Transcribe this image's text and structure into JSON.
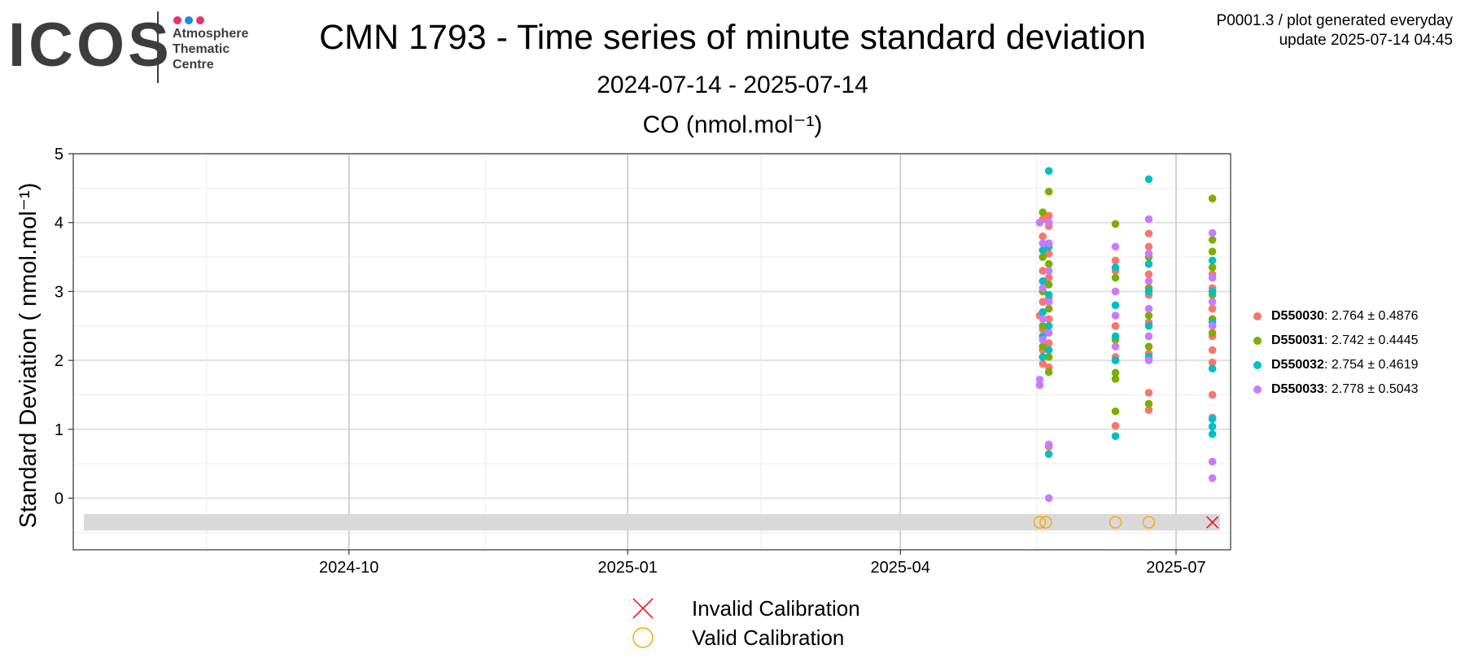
{
  "logo": {
    "name": "ICOS",
    "sub": [
      "Atmosphere",
      "Thematic",
      "Centre"
    ],
    "dot_colors": [
      "#e8316f",
      "#1e88e5",
      "#e8316f"
    ]
  },
  "header": {
    "title": "CMN 1793 - Time series of minute standard deviation",
    "subtitle": "2024-07-14 - 2025-07-14",
    "info_line1": "P0001.3 / plot generated everyday",
    "info_line2": "update  2025-07-14 04:45"
  },
  "chart_data": {
    "type": "scatter",
    "title": "CO (nmol.mol⁻¹)",
    "ylabel": "Standard Deviation ( nmol.mol⁻¹)",
    "xlabel": "",
    "xlim": [
      "2024-07-14",
      "2025-07-14"
    ],
    "ylim": [
      -0.75,
      5
    ],
    "x_ticks": [
      "2024-10",
      "2025-01",
      "2025-04",
      "2025-07"
    ],
    "y_ticks": [
      0,
      1,
      2,
      3,
      4,
      5
    ],
    "grid": true,
    "legend_position": "right",
    "series": [
      {
        "name": "D550030",
        "stats": ": 2.764 ± 0.4876",
        "color": "#F8766D",
        "points": [
          [
            "2025-05-17",
            2.65
          ],
          [
            "2025-05-18",
            2.7
          ],
          [
            "2025-05-18",
            4.05
          ],
          [
            "2025-05-18",
            3.8
          ],
          [
            "2025-05-18",
            3.3
          ],
          [
            "2025-05-18",
            2.85
          ],
          [
            "2025-05-18",
            2.45
          ],
          [
            "2025-05-18",
            2.15
          ],
          [
            "2025-05-18",
            1.95
          ],
          [
            "2025-05-20",
            4.1
          ],
          [
            "2025-05-20",
            3.95
          ],
          [
            "2025-05-20",
            3.55
          ],
          [
            "2025-05-20",
            3.2
          ],
          [
            "2025-05-20",
            2.9
          ],
          [
            "2025-05-20",
            2.6
          ],
          [
            "2025-05-20",
            2.25
          ],
          [
            "2025-05-20",
            0.75
          ],
          [
            "2025-05-20",
            1.9
          ],
          [
            "2025-06-11",
            1.05
          ],
          [
            "2025-06-11",
            2.05
          ],
          [
            "2025-06-11",
            2.5
          ],
          [
            "2025-06-11",
            3.0
          ],
          [
            "2025-06-11",
            3.3
          ],
          [
            "2025-06-11",
            3.45
          ],
          [
            "2025-06-22",
            1.28
          ],
          [
            "2025-06-22",
            1.53
          ],
          [
            "2025-06-22",
            2.1
          ],
          [
            "2025-06-22",
            2.55
          ],
          [
            "2025-06-22",
            2.95
          ],
          [
            "2025-06-22",
            3.25
          ],
          [
            "2025-06-22",
            3.65
          ],
          [
            "2025-06-22",
            3.84
          ],
          [
            "2025-07-13",
            1.5
          ],
          [
            "2025-07-13",
            1.17
          ],
          [
            "2025-07-13",
            1.97
          ],
          [
            "2025-07-13",
            2.15
          ],
          [
            "2025-07-13",
            2.35
          ],
          [
            "2025-07-13",
            2.75
          ],
          [
            "2025-07-13",
            3.05
          ],
          [
            "2025-07-13",
            3.25
          ]
        ]
      },
      {
        "name": "D550031",
        "stats": ": 2.742 ± 0.4445",
        "color": "#7CAE00",
        "points": [
          [
            "2025-05-18",
            4.15
          ],
          [
            "2025-05-18",
            3.5
          ],
          [
            "2025-05-18",
            3.0
          ],
          [
            "2025-05-18",
            2.5
          ],
          [
            "2025-05-18",
            2.2
          ],
          [
            "2025-05-20",
            4.45
          ],
          [
            "2025-05-20",
            3.4
          ],
          [
            "2025-05-20",
            3.1
          ],
          [
            "2025-05-20",
            2.75
          ],
          [
            "2025-05-20",
            2.05
          ],
          [
            "2025-05-20",
            1.83
          ],
          [
            "2025-06-11",
            3.98
          ],
          [
            "2025-06-11",
            3.2
          ],
          [
            "2025-06-11",
            2.3
          ],
          [
            "2025-06-11",
            1.82
          ],
          [
            "2025-06-11",
            1.73
          ],
          [
            "2025-06-11",
            1.26
          ],
          [
            "2025-06-22",
            3.5
          ],
          [
            "2025-06-22",
            3.05
          ],
          [
            "2025-06-22",
            2.65
          ],
          [
            "2025-06-22",
            2.2
          ],
          [
            "2025-06-22",
            1.37
          ],
          [
            "2025-07-13",
            4.35
          ],
          [
            "2025-07-13",
            3.75
          ],
          [
            "2025-07-13",
            3.58
          ],
          [
            "2025-07-13",
            3.35
          ],
          [
            "2025-07-13",
            2.95
          ],
          [
            "2025-07-13",
            2.6
          ],
          [
            "2025-07-13",
            2.4
          ]
        ]
      },
      {
        "name": "D550032",
        "stats": ": 2.754 ± 0.4619",
        "color": "#00BFC4",
        "points": [
          [
            "2025-05-18",
            3.6
          ],
          [
            "2025-05-18",
            3.15
          ],
          [
            "2025-05-18",
            2.7
          ],
          [
            "2025-05-18",
            2.35
          ],
          [
            "2025-05-18",
            2.05
          ],
          [
            "2025-05-20",
            4.75
          ],
          [
            "2025-05-20",
            3.65
          ],
          [
            "2025-05-20",
            2.95
          ],
          [
            "2025-05-20",
            2.5
          ],
          [
            "2025-05-20",
            2.15
          ],
          [
            "2025-05-20",
            0.64
          ],
          [
            "2025-06-11",
            3.35
          ],
          [
            "2025-06-11",
            2.8
          ],
          [
            "2025-06-11",
            2.35
          ],
          [
            "2025-06-11",
            2.0
          ],
          [
            "2025-06-11",
            0.9
          ],
          [
            "2025-06-22",
            4.63
          ],
          [
            "2025-06-22",
            3.4
          ],
          [
            "2025-06-22",
            3.0
          ],
          [
            "2025-06-22",
            2.5
          ],
          [
            "2025-06-22",
            2.05
          ],
          [
            "2025-07-13",
            3.45
          ],
          [
            "2025-07-13",
            3.0
          ],
          [
            "2025-07-13",
            2.55
          ],
          [
            "2025-07-13",
            1.88
          ],
          [
            "2025-07-13",
            1.15
          ],
          [
            "2025-07-13",
            1.04
          ],
          [
            "2025-07-13",
            0.93
          ]
        ]
      },
      {
        "name": "D550033",
        "stats": ": 2.778 ± 0.5043",
        "color": "#C77CFF",
        "points": [
          [
            "2025-05-17",
            4.0
          ],
          [
            "2025-05-17",
            1.72
          ],
          [
            "2025-05-17",
            1.64
          ],
          [
            "2025-05-18",
            3.7
          ],
          [
            "2025-05-18",
            3.05
          ],
          [
            "2025-05-18",
            2.6
          ],
          [
            "2025-05-18",
            2.3
          ],
          [
            "2025-05-20",
            4.0
          ],
          [
            "2025-05-20",
            3.7
          ],
          [
            "2025-05-20",
            3.3
          ],
          [
            "2025-05-20",
            2.85
          ],
          [
            "2025-05-20",
            2.4
          ],
          [
            "2025-05-20",
            0.78
          ],
          [
            "2025-05-20",
            0.0
          ],
          [
            "2025-06-11",
            3.65
          ],
          [
            "2025-06-11",
            3.0
          ],
          [
            "2025-06-11",
            2.65
          ],
          [
            "2025-06-11",
            2.2
          ],
          [
            "2025-06-22",
            4.05
          ],
          [
            "2025-06-22",
            3.55
          ],
          [
            "2025-06-22",
            3.15
          ],
          [
            "2025-06-22",
            2.75
          ],
          [
            "2025-06-22",
            2.35
          ],
          [
            "2025-06-22",
            2.0
          ],
          [
            "2025-07-13",
            3.85
          ],
          [
            "2025-07-13",
            3.2
          ],
          [
            "2025-07-13",
            2.85
          ],
          [
            "2025-07-13",
            2.5
          ],
          [
            "2025-07-13",
            0.53
          ],
          [
            "2025-07-13",
            0.29
          ]
        ]
      }
    ],
    "calibration_band_y": [
      -0.47,
      -0.23
    ],
    "calibrations": [
      {
        "date": "2025-05-17",
        "y": -0.35,
        "status": "valid"
      },
      {
        "date": "2025-05-19",
        "y": -0.35,
        "status": "valid"
      },
      {
        "date": "2025-06-11",
        "y": -0.35,
        "status": "valid"
      },
      {
        "date": "2025-06-22",
        "y": -0.35,
        "status": "valid"
      },
      {
        "date": "2025-07-13",
        "y": -0.35,
        "status": "invalid"
      }
    ],
    "calibration_legend": [
      {
        "label": "Invalid Calibration",
        "color": "#FF0000",
        "symbol": "cross"
      },
      {
        "label": "Valid Calibration",
        "color": "#FFA500",
        "symbol": "circle"
      }
    ]
  }
}
